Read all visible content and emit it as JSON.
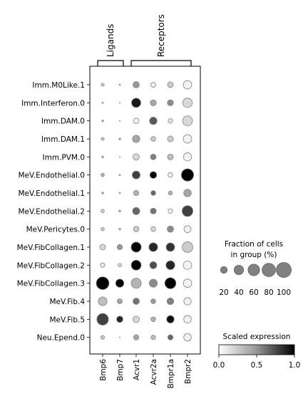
{
  "chart_data": {
    "type": "dotplot",
    "title": "",
    "groups": [
      {
        "label": "Ligands",
        "genes": [
          "Bmp6",
          "Bmp7"
        ]
      },
      {
        "label": "Receptors",
        "genes": [
          "Acvr1",
          "Acvr2a",
          "Bmpr1a",
          "Bmpr2"
        ]
      }
    ],
    "genes": [
      "Bmp6",
      "Bmp7",
      "Acvr1",
      "Acvr2a",
      "Bmpr1a",
      "Bmpr2"
    ],
    "cell_types": [
      "Imm.M0Like.1",
      "Imm.Interferon.0",
      "Imm.DAM.0",
      "Imm.DAM.1",
      "Imm.PVM.0",
      "MeV.Endothelial.0",
      "MeV.Endothelial.1",
      "MeV.Endothelial.2",
      "MeV.Pericytes.0",
      "MeV.FibCollagen.1",
      "MeV.FibCollagen.2",
      "MeV.FibCollagen.3",
      "MeV.Fib.4",
      "MeV.Fib.5",
      "Neu.Epend.0"
    ],
    "fraction_pct": [
      [
        4,
        2,
        18,
        11,
        14,
        32
      ],
      [
        2,
        1,
        38,
        16,
        16,
        40
      ],
      [
        3,
        1,
        13,
        25,
        9,
        43
      ],
      [
        4,
        3,
        24,
        10,
        15,
        32
      ],
      [
        3,
        1,
        18,
        14,
        15,
        30
      ],
      [
        5,
        2,
        28,
        21,
        10,
        68
      ],
      [
        3,
        2,
        12,
        10,
        7,
        25
      ],
      [
        5,
        3,
        23,
        15,
        9,
        52
      ],
      [
        5,
        3,
        13,
        10,
        18,
        22
      ],
      [
        14,
        12,
        45,
        34,
        32,
        50
      ],
      [
        9,
        5,
        44,
        22,
        35,
        32
      ],
      [
        72,
        30,
        45,
        28,
        55,
        32
      ],
      [
        34,
        11,
        18,
        10,
        20,
        24
      ],
      [
        60,
        18,
        19,
        10,
        25,
        25
      ],
      [
        6,
        1,
        12,
        9,
        12,
        25
      ]
    ],
    "scaled_expression": [
      [
        0.2,
        0.1,
        0.4,
        0.05,
        0.2,
        0.05
      ],
      [
        0.2,
        0.1,
        0.9,
        0.35,
        0.45,
        0.15
      ],
      [
        0.2,
        0.1,
        0.05,
        0.65,
        0.1,
        0.15
      ],
      [
        0.2,
        0.1,
        0.35,
        0.2,
        0.2,
        0.05
      ],
      [
        0.2,
        0.1,
        0.15,
        0.5,
        0.25,
        0.05
      ],
      [
        0.3,
        0.1,
        0.75,
        1.0,
        0.05,
        1.0
      ],
      [
        0.2,
        0.1,
        0.3,
        0.6,
        0.3,
        0.35
      ],
      [
        0.2,
        0.1,
        0.6,
        0.55,
        0.05,
        0.75
      ],
      [
        0.2,
        0.1,
        0.2,
        0.15,
        0.45,
        0.05
      ],
      [
        0.15,
        0.4,
        1.0,
        0.85,
        0.8,
        0.2
      ],
      [
        0.1,
        0.15,
        1.0,
        0.7,
        0.85,
        0.05
      ],
      [
        1.0,
        1.0,
        0.3,
        0.45,
        1.0,
        0.05
      ],
      [
        0.25,
        0.35,
        0.55,
        0.4,
        0.5,
        0.05
      ],
      [
        0.75,
        0.85,
        0.15,
        0.3,
        0.95,
        0.05
      ],
      [
        0.2,
        0.1,
        0.35,
        0.25,
        0.6,
        0.05
      ]
    ],
    "size_legend": {
      "title_line1": "Fraction of cells",
      "title_line2": "in group (%)",
      "values": [
        20,
        40,
        60,
        80,
        100
      ]
    },
    "color_legend": {
      "title": "Scaled expression",
      "ticks": [
        "0.0",
        "0.5",
        "1.0"
      ],
      "range": [
        0,
        1
      ],
      "colormap": "Greys"
    },
    "colors": {
      "low": "#ffffff",
      "high": "#000000",
      "edge": "#808080"
    }
  }
}
